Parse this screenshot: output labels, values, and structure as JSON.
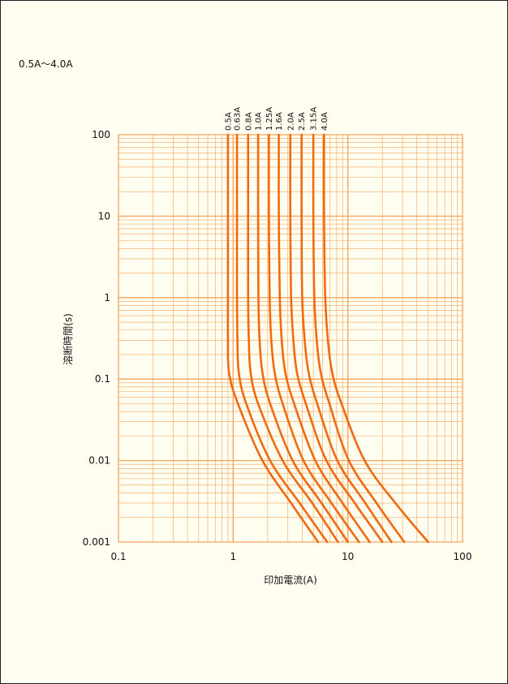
{
  "page_title": "0.5A〜4.0A",
  "chart_data": {
    "type": "line",
    "xscale": "log",
    "yscale": "log",
    "xlim": [
      0.1,
      100
    ],
    "ylim": [
      0.001,
      100
    ],
    "xlabel": "印加電流(A)",
    "ylabel": "溶断時間(s)",
    "x_tick_labels": [
      "0.1",
      "1",
      "10",
      "100"
    ],
    "y_tick_labels": [
      "0.001",
      "0.01",
      "0.1",
      "1",
      "10",
      "100"
    ],
    "grid": true,
    "grid_color": "#f5a25a",
    "line_color": "#f26a10",
    "series": [
      {
        "name": "0.5A",
        "points": [
          [
            0.9,
            100
          ],
          [
            0.9,
            10
          ],
          [
            0.9,
            1
          ],
          [
            0.9,
            0.3
          ],
          [
            0.92,
            0.12
          ],
          [
            1.1,
            0.05
          ],
          [
            1.8,
            0.01
          ],
          [
            3.2,
            0.003
          ],
          [
            5.5,
            0.001
          ]
        ]
      },
      {
        "name": "0.63A",
        "points": [
          [
            1.08,
            100
          ],
          [
            1.08,
            10
          ],
          [
            1.08,
            1
          ],
          [
            1.09,
            0.3
          ],
          [
            1.12,
            0.12
          ],
          [
            1.3,
            0.05
          ],
          [
            2.1,
            0.01
          ],
          [
            3.8,
            0.003
          ],
          [
            6.6,
            0.001
          ]
        ]
      },
      {
        "name": "0.8A",
        "points": [
          [
            1.35,
            100
          ],
          [
            1.35,
            10
          ],
          [
            1.35,
            1
          ],
          [
            1.37,
            0.3
          ],
          [
            1.42,
            0.12
          ],
          [
            1.65,
            0.05
          ],
          [
            2.7,
            0.01
          ],
          [
            4.9,
            0.003
          ],
          [
            8.2,
            0.001
          ]
        ]
      },
      {
        "name": "1.0A",
        "points": [
          [
            1.65,
            100
          ],
          [
            1.65,
            10
          ],
          [
            1.66,
            1
          ],
          [
            1.7,
            0.3
          ],
          [
            1.8,
            0.12
          ],
          [
            2.1,
            0.05
          ],
          [
            3.3,
            0.01
          ],
          [
            5.9,
            0.003
          ],
          [
            10,
            0.001
          ]
        ]
      },
      {
        "name": "1.25A",
        "points": [
          [
            2.05,
            100
          ],
          [
            2.05,
            10
          ],
          [
            2.08,
            1
          ],
          [
            2.15,
            0.3
          ],
          [
            2.3,
            0.12
          ],
          [
            2.7,
            0.05
          ],
          [
            4.1,
            0.01
          ],
          [
            7.2,
            0.003
          ],
          [
            12.5,
            0.001
          ]
        ]
      },
      {
        "name": "1.6A",
        "points": [
          [
            2.5,
            100
          ],
          [
            2.5,
            10
          ],
          [
            2.55,
            1
          ],
          [
            2.65,
            0.3
          ],
          [
            2.85,
            0.12
          ],
          [
            3.4,
            0.05
          ],
          [
            5.2,
            0.01
          ],
          [
            9.0,
            0.003
          ],
          [
            15.5,
            0.001
          ]
        ]
      },
      {
        "name": "2.0A",
        "points": [
          [
            3.15,
            100
          ],
          [
            3.15,
            10
          ],
          [
            3.2,
            1
          ],
          [
            3.35,
            0.3
          ],
          [
            3.6,
            0.12
          ],
          [
            4.3,
            0.05
          ],
          [
            6.5,
            0.01
          ],
          [
            11.5,
            0.003
          ],
          [
            20,
            0.001
          ]
        ]
      },
      {
        "name": "2.5A",
        "points": [
          [
            3.95,
            100
          ],
          [
            3.95,
            10
          ],
          [
            4.0,
            1
          ],
          [
            4.2,
            0.3
          ],
          [
            4.55,
            0.12
          ],
          [
            5.4,
            0.05
          ],
          [
            8.1,
            0.01
          ],
          [
            14.2,
            0.003
          ],
          [
            24,
            0.001
          ]
        ]
      },
      {
        "name": "3.15A",
        "points": [
          [
            5.0,
            100
          ],
          [
            5.0,
            10
          ],
          [
            5.1,
            1
          ],
          [
            5.35,
            0.3
          ],
          [
            5.8,
            0.12
          ],
          [
            6.9,
            0.05
          ],
          [
            10.2,
            0.01
          ],
          [
            17.8,
            0.003
          ],
          [
            31,
            0.001
          ]
        ]
      },
      {
        "name": "4.0A",
        "points": [
          [
            6.2,
            100
          ],
          [
            6.2,
            10
          ],
          [
            6.35,
            1
          ],
          [
            6.7,
            0.3
          ],
          [
            7.3,
            0.12
          ],
          [
            8.8,
            0.05
          ],
          [
            14.0,
            0.01
          ],
          [
            26,
            0.003
          ],
          [
            50,
            0.001
          ]
        ]
      }
    ]
  }
}
